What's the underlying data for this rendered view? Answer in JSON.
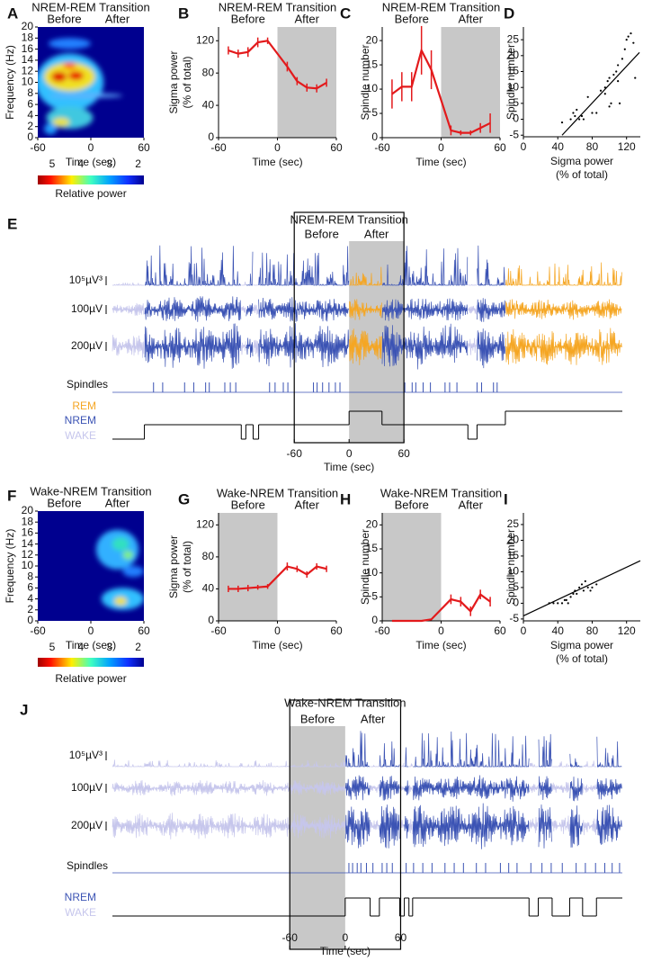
{
  "chart_data": [
    {
      "panel": "A",
      "type": "heatmap",
      "title": "NREM-REM Transition",
      "annotations": [
        "Before",
        "After"
      ],
      "xlabel": "Time (sec)",
      "ylabel": "Frequency (Hz)",
      "xlim": [
        -60,
        60
      ],
      "xticks": [
        -60,
        0,
        60
      ],
      "ylim": [
        0,
        20
      ],
      "yticks": [
        0,
        2,
        4,
        6,
        8,
        10,
        12,
        14,
        16,
        18,
        20
      ],
      "colorbar_lim": [
        5.5,
        1.8
      ],
      "colorbar_ticks": [
        5,
        4,
        3,
        2
      ],
      "colorbar_label": "Relative power"
    },
    {
      "panel": "B",
      "type": "line",
      "title": "NREM-REM Transition",
      "annotations": [
        "Before",
        "After"
      ],
      "xlabel": "Time (sec)",
      "ylabel": [
        "Sigma power",
        "(% of total)"
      ],
      "xlim": [
        -60,
        60
      ],
      "xticks": [
        -60,
        0,
        60
      ],
      "ylim": [
        0,
        137
      ],
      "yticks": [
        0,
        40,
        80,
        120
      ],
      "shade": [
        0,
        60
      ],
      "x": [
        -50,
        -40,
        -30,
        -20,
        -10,
        10,
        20,
        30,
        40,
        50
      ],
      "series": [
        {
          "color": "#e31a1c",
          "values": [
            108,
            104,
            106,
            118,
            120,
            88,
            70,
            62,
            61,
            68
          ],
          "errors": [
            5,
            5,
            6,
            6,
            4,
            6,
            5,
            5,
            5,
            5
          ]
        }
      ]
    },
    {
      "panel": "C",
      "type": "line",
      "title": "NREM-REM Transition",
      "annotations": [
        "Before",
        "After"
      ],
      "xlabel": "Time (sec)",
      "ylabel": [
        "Spindle number"
      ],
      "xlim": [
        -60,
        60
      ],
      "xticks": [
        -60,
        0,
        60
      ],
      "ylim": [
        0,
        22.8
      ],
      "yticks": [
        0,
        5,
        10,
        15,
        20
      ],
      "shade": [
        0,
        60
      ],
      "x": [
        -50,
        -40,
        -30,
        -20,
        -10,
        10,
        20,
        30,
        40,
        50
      ],
      "series": [
        {
          "color": "#e31a1c",
          "values": [
            9,
            10.5,
            10.5,
            18,
            14,
            1.5,
            1,
            1,
            2,
            3
          ],
          "errors": [
            3,
            3,
            3,
            5,
            4,
            1,
            0.5,
            0.5,
            1,
            2
          ]
        }
      ]
    },
    {
      "panel": "D",
      "type": "scatter",
      "xlabel": [
        "Sigma power",
        "(% of total)"
      ],
      "ylabel": [
        "Spindle number"
      ],
      "xlim": [
        0,
        136
      ],
      "xticks": [
        0,
        40,
        80,
        120
      ],
      "ylim": [
        -5.5,
        29
      ],
      "yticks": [
        -5,
        0,
        5,
        10,
        15,
        20,
        25
      ],
      "x": [
        45,
        55,
        58,
        60,
        62,
        65,
        68,
        70,
        75,
        80,
        85,
        90,
        95,
        98,
        100,
        100,
        102,
        105,
        108,
        110,
        112,
        115,
        118,
        120,
        122,
        125,
        128,
        130,
        110,
        95
      ],
      "y": [
        -1,
        0,
        2,
        1,
        3,
        0,
        1,
        0,
        7,
        2,
        2,
        9,
        10,
        12,
        13,
        4,
        5,
        14,
        15,
        17,
        5,
        19,
        22,
        25,
        26,
        27,
        24,
        13,
        12,
        8
      ],
      "fit": {
        "x": [
          45,
          135
        ],
        "y": [
          -5,
          21
        ]
      }
    },
    {
      "panel": "E",
      "type": "traces",
      "title": "NREM-REM Transition",
      "annotations": [
        "Before",
        "After"
      ],
      "scale_labels": [
        "10⁵µV³",
        "100µV",
        "200µV"
      ],
      "spindle_label": "Spindles",
      "states": [
        "REM",
        "NREM",
        "WAKE"
      ],
      "state_colors": [
        "#f5a623",
        "#3b53b4",
        "#c6c6ec"
      ],
      "xlabel": "Time (sec)",
      "xlim": [
        -259,
        299
      ],
      "xticks": [
        -60,
        0,
        60
      ],
      "shade": [
        0,
        60
      ],
      "hypnogram": {
        "t": [
          -259,
          -224,
          -118,
          -113,
          -105,
          -99,
          0,
          36,
          130,
          140,
          171
        ],
        "state": [
          2,
          1,
          2,
          1,
          2,
          1,
          0,
          1,
          2,
          1,
          0
        ]
      },
      "spindles": [
        -214,
        -204,
        -180,
        -170,
        -157,
        -153,
        -136,
        -130,
        -124,
        -87,
        -81,
        -72,
        -67,
        -39,
        -35,
        -29,
        -22,
        -15,
        -10,
        61,
        69,
        73,
        81,
        89,
        105,
        110,
        118,
        140,
        145,
        158,
        162
      ]
    },
    {
      "panel": "F",
      "type": "heatmap",
      "title": "Wake-NREM Transition",
      "annotations": [
        "Before",
        "After"
      ],
      "xlabel": "Time (sec)",
      "ylabel": "Frequency (Hz)",
      "xlim": [
        -60,
        60
      ],
      "xticks": [
        -60,
        0,
        60
      ],
      "ylim": [
        0,
        20
      ],
      "yticks": [
        0,
        2,
        4,
        6,
        8,
        10,
        12,
        14,
        16,
        18,
        20
      ],
      "colorbar_lim": [
        5.5,
        1.8
      ],
      "colorbar_ticks": [
        5,
        4,
        3,
        2
      ],
      "colorbar_label": "Relative power"
    },
    {
      "panel": "G",
      "type": "line",
      "title": "Wake-NREM Transition",
      "annotations": [
        "Before",
        "After"
      ],
      "xlabel": "Time (sec)",
      "ylabel": [
        "Sigma power",
        "(% of total)"
      ],
      "xlim": [
        -60,
        60
      ],
      "xticks": [
        -60,
        0,
        60
      ],
      "ylim": [
        0,
        135
      ],
      "yticks": [
        0,
        40,
        80,
        120
      ],
      "shade": [
        -60,
        0
      ],
      "x": [
        -50,
        -40,
        -30,
        -20,
        -10,
        10,
        20,
        30,
        40,
        50
      ],
      "series": [
        {
          "color": "#e31a1c",
          "values": [
            40,
            40,
            41,
            42,
            43,
            68,
            65,
            58,
            68,
            65
          ],
          "errors": [
            4,
            4,
            4,
            3,
            3,
            5,
            4,
            4,
            4,
            4
          ]
        }
      ]
    },
    {
      "panel": "H",
      "type": "line",
      "title": "Wake-NREM Transition",
      "annotations": [
        "Before",
        "After"
      ],
      "xlabel": "Time (sec)",
      "ylabel": [
        "Spindle number"
      ],
      "xlim": [
        -60,
        60
      ],
      "xticks": [
        -60,
        0,
        60
      ],
      "ylim": [
        0,
        22.5
      ],
      "yticks": [
        0,
        5,
        10,
        15,
        20
      ],
      "shade": [
        -60,
        0
      ],
      "x": [
        -50,
        -40,
        -30,
        -20,
        -10,
        10,
        20,
        30,
        40,
        50
      ],
      "series": [
        {
          "color": "#e31a1c",
          "values": [
            0,
            0,
            0,
            0,
            0.3,
            4.5,
            4,
            2,
            5.5,
            4
          ],
          "errors": [
            0,
            0,
            0,
            0,
            0,
            1,
            1,
            1,
            1,
            1
          ]
        }
      ]
    },
    {
      "panel": "I",
      "type": "scatter",
      "xlabel": [
        "Sigma power",
        "(% of total)"
      ],
      "ylabel": [
        "Spindle number"
      ],
      "xlim": [
        0,
        136
      ],
      "xticks": [
        0,
        40,
        80,
        120
      ],
      "ylim": [
        -5.6,
        28.7
      ],
      "yticks": [
        -5,
        0,
        5,
        10,
        15,
        20,
        25
      ],
      "x": [
        30,
        35,
        40,
        45,
        48,
        50,
        52,
        55,
        58,
        60,
        62,
        65,
        68,
        70,
        72,
        75,
        78,
        80,
        85
      ],
      "y": [
        0,
        0,
        0,
        0,
        1,
        1,
        0,
        2,
        3,
        4,
        3,
        5,
        6,
        4,
        7,
        5,
        4,
        5,
        6
      ],
      "fit": {
        "x": [
          0,
          136
        ],
        "y": [
          -4,
          13.5
        ]
      }
    },
    {
      "panel": "J",
      "type": "traces",
      "title": "Wake-NREM Transition",
      "annotations": [
        "Before",
        "After"
      ],
      "scale_labels": [
        "10⁵µV³",
        "100µV",
        "200µV"
      ],
      "spindle_label": "Spindles",
      "states": [
        "NREM",
        "WAKE"
      ],
      "state_colors": [
        "#3b53b4",
        "#c6c6ec"
      ],
      "xlabel": "Time (sec)",
      "xlim": [
        -252,
        300
      ],
      "xticks": [
        -60,
        0,
        60
      ],
      "shade": [
        -60,
        0
      ],
      "hypnogram": {
        "t": [
          -252,
          0,
          27,
          37,
          59,
          64,
          69,
          73,
          199,
          209,
          224,
          243,
          257,
          272
        ],
        "state": [
          1,
          0,
          1,
          0,
          1,
          0,
          1,
          0,
          1,
          0,
          1,
          0,
          1,
          0
        ]
      },
      "spindles": [
        4,
        8,
        13,
        17,
        23,
        30,
        40,
        45,
        51,
        60,
        66,
        74,
        84,
        94,
        108,
        118,
        128,
        142,
        152,
        168,
        177,
        186,
        201,
        213,
        223,
        235,
        250,
        260,
        271,
        281,
        289,
        297
      ]
    }
  ]
}
